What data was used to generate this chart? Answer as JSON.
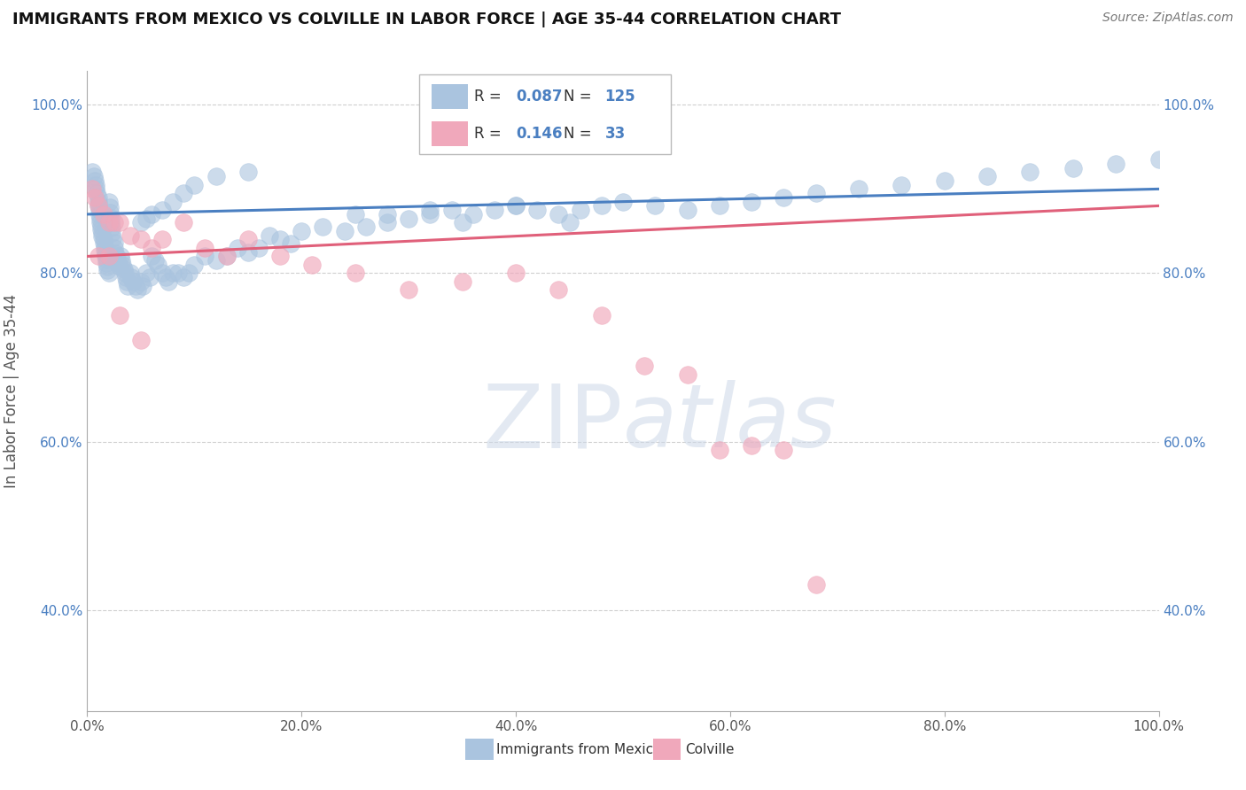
{
  "title": "IMMIGRANTS FROM MEXICO VS COLVILLE IN LABOR FORCE | AGE 35-44 CORRELATION CHART",
  "source": "Source: ZipAtlas.com",
  "ylabel": "In Labor Force | Age 35-44",
  "legend_labels": [
    "Immigrants from Mexico",
    "Colville"
  ],
  "blue_color": "#aac4df",
  "pink_color": "#f0a8bb",
  "blue_line_color": "#4a7fc1",
  "pink_line_color": "#e0607a",
  "blue_R": 0.087,
  "blue_N": 125,
  "pink_R": 0.146,
  "pink_N": 33,
  "background_color": "#ffffff",
  "grid_color": "#bbbbbb",
  "watermark_color": "#ccd8e8",
  "ytick_color": "#4a7fc1",
  "xtick_color": "#555555",
  "ylabel_color": "#555555",
  "title_color": "#111111",
  "source_color": "#777777",
  "blue_x": [
    0.005,
    0.006,
    0.007,
    0.008,
    0.008,
    0.009,
    0.01,
    0.01,
    0.01,
    0.011,
    0.011,
    0.012,
    0.012,
    0.013,
    0.013,
    0.014,
    0.014,
    0.015,
    0.015,
    0.016,
    0.016,
    0.017,
    0.017,
    0.018,
    0.018,
    0.019,
    0.019,
    0.02,
    0.02,
    0.021,
    0.021,
    0.022,
    0.022,
    0.023,
    0.023,
    0.024,
    0.025,
    0.025,
    0.026,
    0.027,
    0.028,
    0.029,
    0.03,
    0.031,
    0.032,
    0.033,
    0.034,
    0.035,
    0.036,
    0.037,
    0.038,
    0.04,
    0.041,
    0.043,
    0.045,
    0.047,
    0.05,
    0.052,
    0.055,
    0.058,
    0.06,
    0.063,
    0.066,
    0.07,
    0.073,
    0.076,
    0.08,
    0.085,
    0.09,
    0.095,
    0.1,
    0.11,
    0.12,
    0.13,
    0.14,
    0.15,
    0.16,
    0.17,
    0.18,
    0.19,
    0.2,
    0.22,
    0.24,
    0.26,
    0.28,
    0.3,
    0.32,
    0.34,
    0.36,
    0.38,
    0.4,
    0.42,
    0.44,
    0.46,
    0.48,
    0.5,
    0.53,
    0.56,
    0.59,
    0.62,
    0.65,
    0.68,
    0.72,
    0.76,
    0.8,
    0.84,
    0.88,
    0.92,
    0.96,
    1.0,
    0.35,
    0.28,
    0.45,
    0.4,
    0.32,
    0.25,
    0.15,
    0.12,
    0.1,
    0.09,
    0.08,
    0.07,
    0.06,
    0.055,
    0.05
  ],
  "blue_y": [
    0.92,
    0.915,
    0.91,
    0.905,
    0.9,
    0.895,
    0.89,
    0.885,
    0.88,
    0.875,
    0.87,
    0.865,
    0.86,
    0.856,
    0.852,
    0.848,
    0.844,
    0.84,
    0.836,
    0.832,
    0.828,
    0.824,
    0.82,
    0.816,
    0.812,
    0.808,
    0.804,
    0.8,
    0.885,
    0.878,
    0.872,
    0.866,
    0.86,
    0.854,
    0.848,
    0.842,
    0.836,
    0.83,
    0.824,
    0.82,
    0.816,
    0.812,
    0.808,
    0.82,
    0.815,
    0.81,
    0.805,
    0.8,
    0.795,
    0.79,
    0.785,
    0.8,
    0.795,
    0.79,
    0.785,
    0.78,
    0.79,
    0.785,
    0.8,
    0.795,
    0.82,
    0.815,
    0.81,
    0.8,
    0.795,
    0.79,
    0.8,
    0.8,
    0.795,
    0.8,
    0.81,
    0.82,
    0.815,
    0.82,
    0.83,
    0.825,
    0.83,
    0.845,
    0.84,
    0.835,
    0.85,
    0.855,
    0.85,
    0.855,
    0.86,
    0.865,
    0.87,
    0.875,
    0.87,
    0.875,
    0.88,
    0.875,
    0.87,
    0.875,
    0.88,
    0.885,
    0.88,
    0.875,
    0.88,
    0.885,
    0.89,
    0.895,
    0.9,
    0.905,
    0.91,
    0.915,
    0.92,
    0.925,
    0.93,
    0.935,
    0.86,
    0.87,
    0.86,
    0.88,
    0.875,
    0.87,
    0.92,
    0.915,
    0.905,
    0.895,
    0.885,
    0.875,
    0.87,
    0.865,
    0.86
  ],
  "pink_x": [
    0.005,
    0.007,
    0.01,
    0.015,
    0.02,
    0.025,
    0.03,
    0.04,
    0.05,
    0.06,
    0.07,
    0.09,
    0.11,
    0.13,
    0.15,
    0.18,
    0.21,
    0.25,
    0.3,
    0.35,
    0.4,
    0.44,
    0.48,
    0.52,
    0.56,
    0.59,
    0.62,
    0.65,
    0.68,
    0.01,
    0.02,
    0.03,
    0.05
  ],
  "pink_y": [
    0.9,
    0.89,
    0.88,
    0.87,
    0.86,
    0.86,
    0.86,
    0.845,
    0.84,
    0.83,
    0.84,
    0.86,
    0.83,
    0.82,
    0.84,
    0.82,
    0.81,
    0.8,
    0.78,
    0.79,
    0.8,
    0.78,
    0.75,
    0.69,
    0.68,
    0.59,
    0.595,
    0.59,
    0.43,
    0.82,
    0.82,
    0.75,
    0.72
  ],
  "blue_trend_x0": 0.0,
  "blue_trend_x1": 1.0,
  "blue_trend_y0": 0.87,
  "blue_trend_y1": 0.9,
  "pink_trend_x0": 0.0,
  "pink_trend_x1": 1.0,
  "pink_trend_y0": 0.82,
  "pink_trend_y1": 0.88,
  "xlim": [
    0.0,
    1.0
  ],
  "ylim": [
    0.28,
    1.04
  ],
  "x_ticks": [
    0.0,
    0.2,
    0.4,
    0.6,
    0.8,
    1.0
  ],
  "x_tick_labels": [
    "0.0%",
    "20.0%",
    "40.0%",
    "60.0%",
    "80.0%",
    "100.0%"
  ],
  "y_ticks": [
    0.4,
    0.6,
    0.8,
    1.0
  ],
  "y_tick_labels": [
    "40.0%",
    "60.0%",
    "80.0%",
    "100.0%"
  ]
}
